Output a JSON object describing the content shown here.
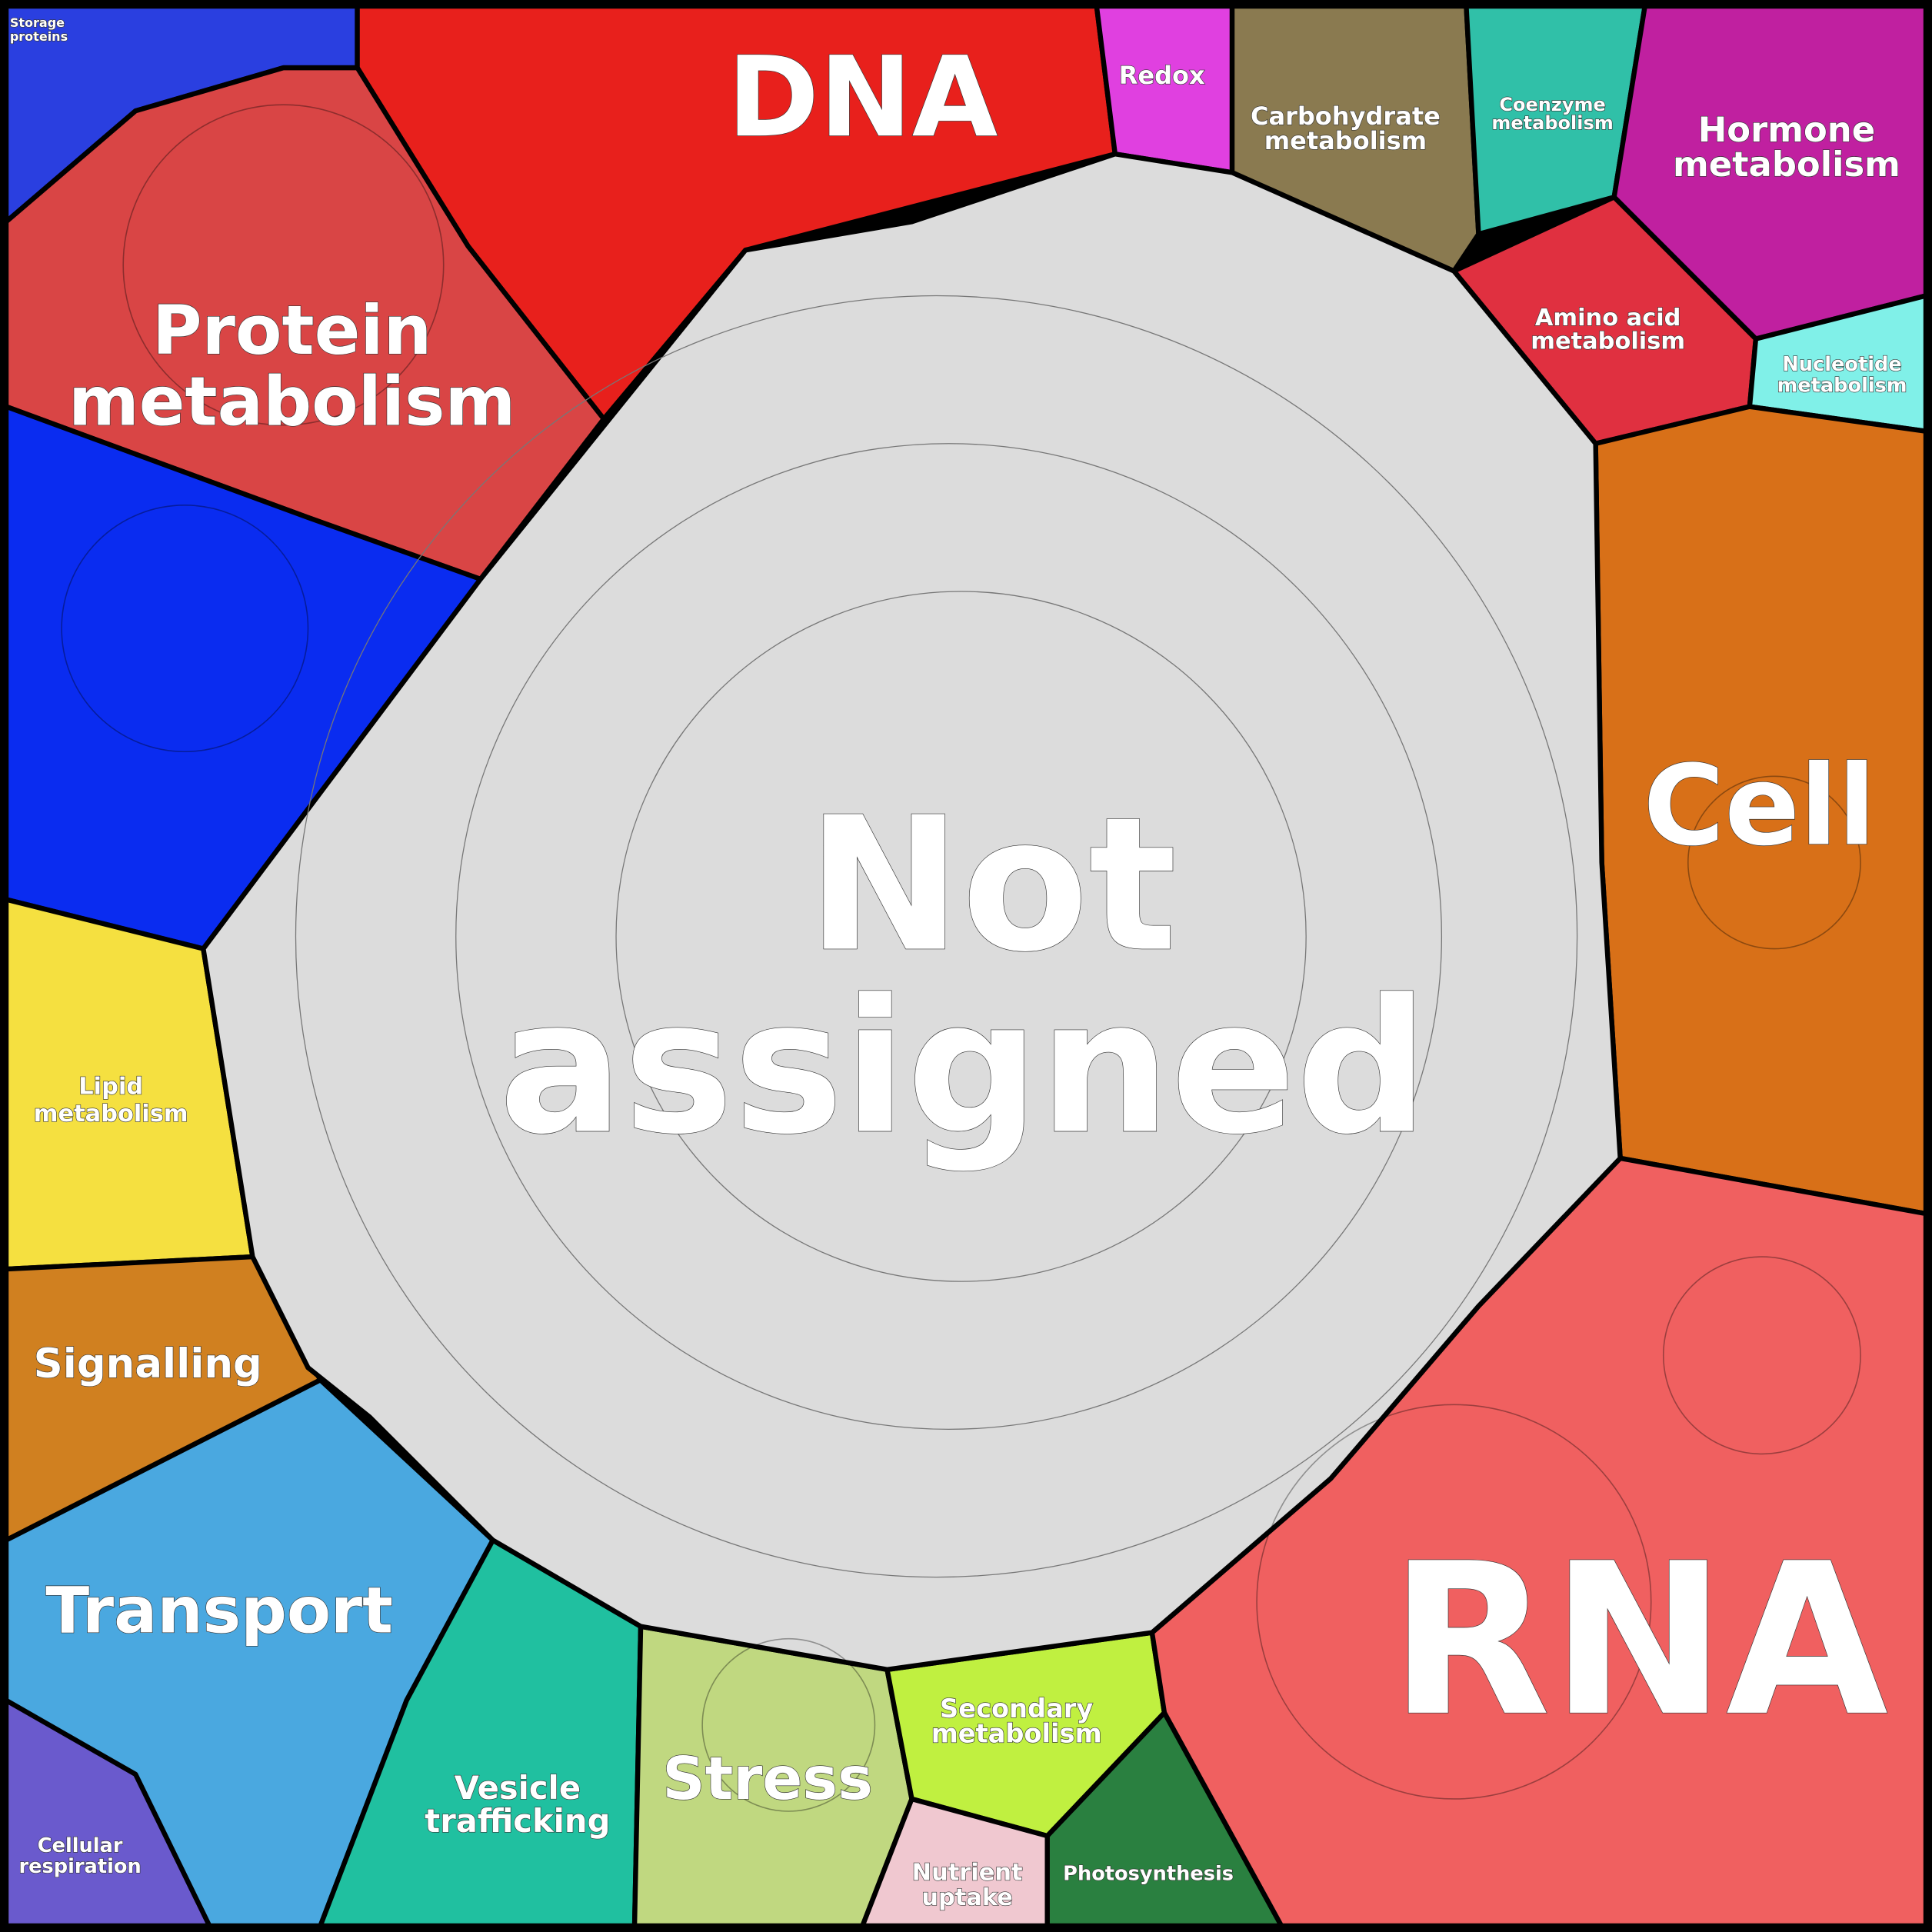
{
  "regions": [
    {
      "lines": [
        "Storage",
        "proteins"
      ]
    },
    {
      "lines": [
        "DNA"
      ]
    },
    {
      "lines": [
        "Redox"
      ]
    },
    {
      "lines": [
        "Carbohydrate",
        "metabolism"
      ]
    },
    {
      "lines": [
        "Coenzyme",
        "metabolism"
      ]
    },
    {
      "lines": [
        "Hormone",
        "metabolism"
      ]
    },
    {
      "lines": [
        "Amino acid",
        "metabolism"
      ]
    },
    {
      "lines": [
        "Nucleotide",
        "metabolism"
      ]
    },
    {
      "lines": [
        "Protein",
        "metabolism"
      ]
    },
    {
      "lines": [
        "Cell"
      ]
    },
    {
      "lines": [
        "Not",
        "assigned"
      ]
    },
    {
      "lines": [
        "Lipid",
        "metabolism"
      ]
    },
    {
      "lines": [
        "Signalling"
      ]
    },
    {
      "lines": [
        "Transport"
      ]
    },
    {
      "lines": [
        "RNA"
      ]
    },
    {
      "lines": [
        "Stress"
      ]
    },
    {
      "lines": [
        "Secondary",
        "metabolism"
      ]
    },
    {
      "lines": [
        "Vesicle",
        "trafficking"
      ]
    },
    {
      "lines": [
        "Cellular",
        "respiration"
      ]
    },
    {
      "lines": [
        "Nutrient",
        "uptake"
      ]
    },
    {
      "lines": [
        "Photosynthesis"
      ]
    }
  ]
}
